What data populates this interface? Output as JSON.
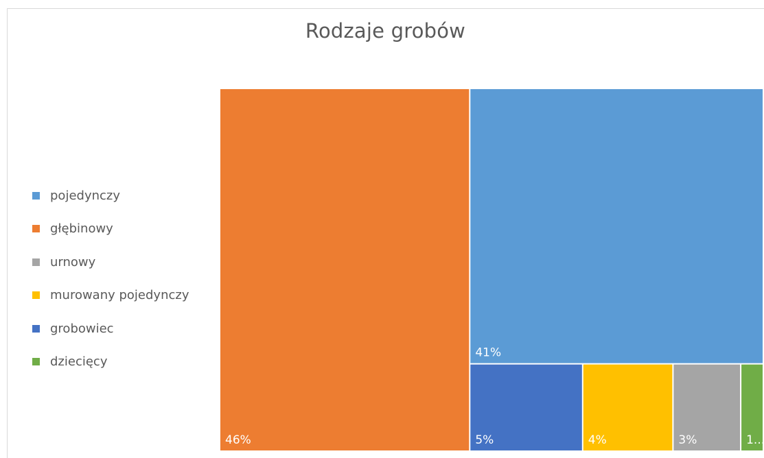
{
  "chart_data": {
    "type": "treemap",
    "title": "Rodzaje grobów",
    "legend_position": "left",
    "series": [
      {
        "name": "pojedynczy",
        "value": 41,
        "label": "41%",
        "color": "#5B9BD5"
      },
      {
        "name": "głębinowy",
        "value": 46,
        "label": "46%",
        "color": "#ED7D31"
      },
      {
        "name": "urnowy",
        "value": 3,
        "label": "3%",
        "color": "#A5A5A5"
      },
      {
        "name": "murowany pojedynczy",
        "value": 4,
        "label": "4%",
        "color": "#FFC000"
      },
      {
        "name": "grobowiec",
        "value": 5,
        "label": "5%",
        "color": "#4472C4"
      },
      {
        "name": "dziecięcy",
        "value": 1,
        "label": "1...",
        "color": "#70AD47"
      }
    ]
  }
}
